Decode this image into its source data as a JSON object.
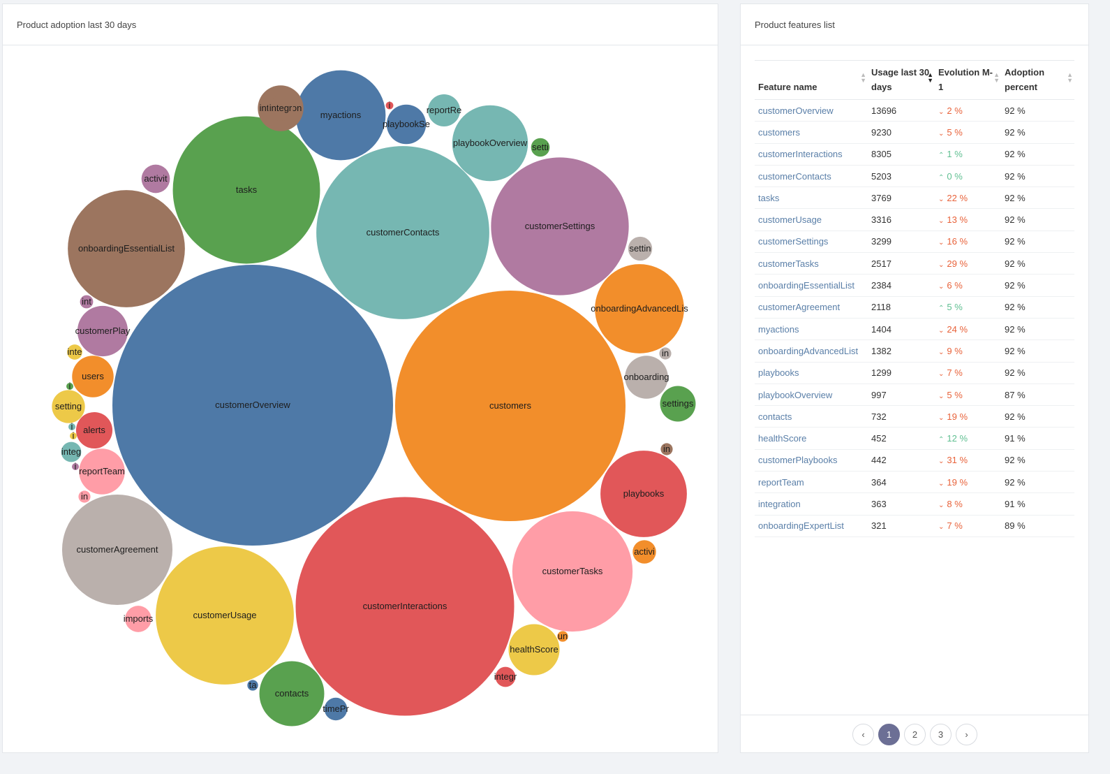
{
  "left_panel": {
    "title": "Product adoption last 30 days"
  },
  "right_panel": {
    "title": "Product features list"
  },
  "chart_data": {
    "type": "bubble",
    "title": "Product adoption last 30 days",
    "bubbles": [
      {
        "label": "customerOverview",
        "value": 13696,
        "color": "#4e79a7"
      },
      {
        "label": "customers",
        "value": 9230,
        "color": "#f28e2b"
      },
      {
        "label": "customerInteractions",
        "value": 8305,
        "color": "#e15759"
      },
      {
        "label": "customerContacts",
        "value": 5203,
        "color": "#76b7b2"
      },
      {
        "label": "tasks",
        "value": 3769,
        "color": "#59a14f"
      },
      {
        "label": "customerUsage",
        "value": 3316,
        "color": "#edc948"
      },
      {
        "label": "customerSettings",
        "value": 3299,
        "color": "#b07aa1"
      },
      {
        "label": "customerTasks",
        "value": 2517,
        "color": "#ff9da7"
      },
      {
        "label": "onboardingEssentialList",
        "value": 2384,
        "color": "#9c755f"
      },
      {
        "label": "customerAgreement",
        "value": 2118,
        "color": "#bab0ac"
      },
      {
        "label": "myactions",
        "value": 1404,
        "color": "#4e79a7"
      },
      {
        "label": "onboardingAdvancedLis",
        "value": 1382,
        "color": "#f28e2b"
      },
      {
        "label": "playbooks",
        "value": 1299,
        "color": "#e15759"
      },
      {
        "label": "playbookOverview",
        "value": 997,
        "color": "#76b7b2"
      },
      {
        "label": "contacts",
        "value": 732,
        "color": "#59a14f"
      },
      {
        "label": "healthScore",
        "value": 452,
        "color": "#edc948"
      },
      {
        "label": "customerPlay",
        "value": 442,
        "color": "#b07aa1"
      },
      {
        "label": "reportTeam",
        "value": 364,
        "color": "#ff9da7"
      },
      {
        "label": "integration",
        "value": 363,
        "color": "#9c755f"
      },
      {
        "label": "onboarding",
        "value": 321,
        "color": "#bab0ac"
      },
      {
        "label": "users",
        "value": 300,
        "color": "#f28e2b"
      },
      {
        "label": "alerts",
        "value": 230,
        "color": "#e15759"
      },
      {
        "label": "settings",
        "value": 220,
        "color": "#59a14f"
      },
      {
        "label": "setting",
        "value": 190,
        "color": "#edc948"
      },
      {
        "label": "playbookSe",
        "value": 270,
        "color": "#4e79a7"
      },
      {
        "label": "reportRe",
        "value": 180,
        "color": "#76b7b2"
      },
      {
        "label": "activit",
        "value": 140,
        "color": "#b07aa1"
      },
      {
        "label": "imports",
        "value": 120,
        "color": "#ff9da7"
      },
      {
        "label": "integr",
        "value": 110,
        "color": "#9c755f"
      },
      {
        "label": "settin",
        "value": 100,
        "color": "#bab0ac"
      },
      {
        "label": "activi",
        "value": 95,
        "color": "#f28e2b"
      },
      {
        "label": "integ",
        "value": 70,
        "color": "#76b7b2"
      },
      {
        "label": "integr",
        "value": 70,
        "color": "#e15759"
      },
      {
        "label": "timePr",
        "value": 90,
        "color": "#4e79a7"
      },
      {
        "label": "setti",
        "value": 60,
        "color": "#59a14f"
      },
      {
        "label": "inte",
        "value": 40,
        "color": "#edc948"
      },
      {
        "label": "int",
        "value": 30,
        "color": "#b07aa1"
      },
      {
        "label": "in",
        "value": 25,
        "color": "#ff9da7"
      },
      {
        "label": "in",
        "value": 25,
        "color": "#bab0ac"
      },
      {
        "label": "in",
        "value": 25,
        "color": "#9c755f"
      },
      {
        "label": "un",
        "value": 20,
        "color": "#f28e2b"
      },
      {
        "label": "ta",
        "value": 20,
        "color": "#4e79a7"
      },
      {
        "label": "i",
        "value": 10,
        "color": "#e15759"
      },
      {
        "label": "i",
        "value": 6,
        "color": "#59a14f"
      },
      {
        "label": "i",
        "value": 6,
        "color": "#76b7b2"
      },
      {
        "label": "i",
        "value": 6,
        "color": "#edc948"
      },
      {
        "label": "i",
        "value": 6,
        "color": "#b07aa1"
      }
    ]
  },
  "table": {
    "headers": [
      "Feature name",
      "Usage last 30 days",
      "Evolution M-1",
      "Adoption percent"
    ],
    "rows": [
      {
        "name": "customerOverview",
        "usage": "13696",
        "evo": "2 %",
        "dir": "down",
        "adoption": "92 %"
      },
      {
        "name": "customers",
        "usage": "9230",
        "evo": "5 %",
        "dir": "down",
        "adoption": "92 %"
      },
      {
        "name": "customerInteractions",
        "usage": "8305",
        "evo": "1 %",
        "dir": "up",
        "adoption": "92 %"
      },
      {
        "name": "customerContacts",
        "usage": "5203",
        "evo": "0 %",
        "dir": "up",
        "adoption": "92 %"
      },
      {
        "name": "tasks",
        "usage": "3769",
        "evo": "22 %",
        "dir": "down",
        "adoption": "92 %"
      },
      {
        "name": "customerUsage",
        "usage": "3316",
        "evo": "13 %",
        "dir": "down",
        "adoption": "92 %"
      },
      {
        "name": "customerSettings",
        "usage": "3299",
        "evo": "16 %",
        "dir": "down",
        "adoption": "92 %"
      },
      {
        "name": "customerTasks",
        "usage": "2517",
        "evo": "29 %",
        "dir": "down",
        "adoption": "92 %"
      },
      {
        "name": "onboardingEssentialList",
        "usage": "2384",
        "evo": "6 %",
        "dir": "down",
        "adoption": "92 %"
      },
      {
        "name": "customerAgreement",
        "usage": "2118",
        "evo": "5 %",
        "dir": "up",
        "adoption": "92 %"
      },
      {
        "name": "myactions",
        "usage": "1404",
        "evo": "24 %",
        "dir": "down",
        "adoption": "92 %"
      },
      {
        "name": "onboardingAdvancedList",
        "usage": "1382",
        "evo": "9 %",
        "dir": "down",
        "adoption": "92 %"
      },
      {
        "name": "playbooks",
        "usage": "1299",
        "evo": "7 %",
        "dir": "down",
        "adoption": "92 %"
      },
      {
        "name": "playbookOverview",
        "usage": "997",
        "evo": "5 %",
        "dir": "down",
        "adoption": "87 %"
      },
      {
        "name": "contacts",
        "usage": "732",
        "evo": "19 %",
        "dir": "down",
        "adoption": "92 %"
      },
      {
        "name": "healthScore",
        "usage": "452",
        "evo": "12 %",
        "dir": "up",
        "adoption": "91 %"
      },
      {
        "name": "customerPlaybooks",
        "usage": "442",
        "evo": "31 %",
        "dir": "down",
        "adoption": "92 %"
      },
      {
        "name": "reportTeam",
        "usage": "364",
        "evo": "19 %",
        "dir": "down",
        "adoption": "92 %"
      },
      {
        "name": "integration",
        "usage": "363",
        "evo": "8 %",
        "dir": "down",
        "adoption": "91 %"
      },
      {
        "name": "onboardingExpertList",
        "usage": "321",
        "evo": "7 %",
        "dir": "down",
        "adoption": "89 %"
      }
    ]
  },
  "pagination": {
    "prev": "‹",
    "pages": [
      "1",
      "2",
      "3"
    ],
    "active": "1",
    "next": "›"
  },
  "icons": {
    "sort": "sort-arrows-icon",
    "trend_up": "chevron-up-icon",
    "trend_down": "chevron-down-icon"
  },
  "colors": {
    "down": "#e8623a",
    "up": "#5fbf91",
    "page_active": "#6c6f95"
  }
}
